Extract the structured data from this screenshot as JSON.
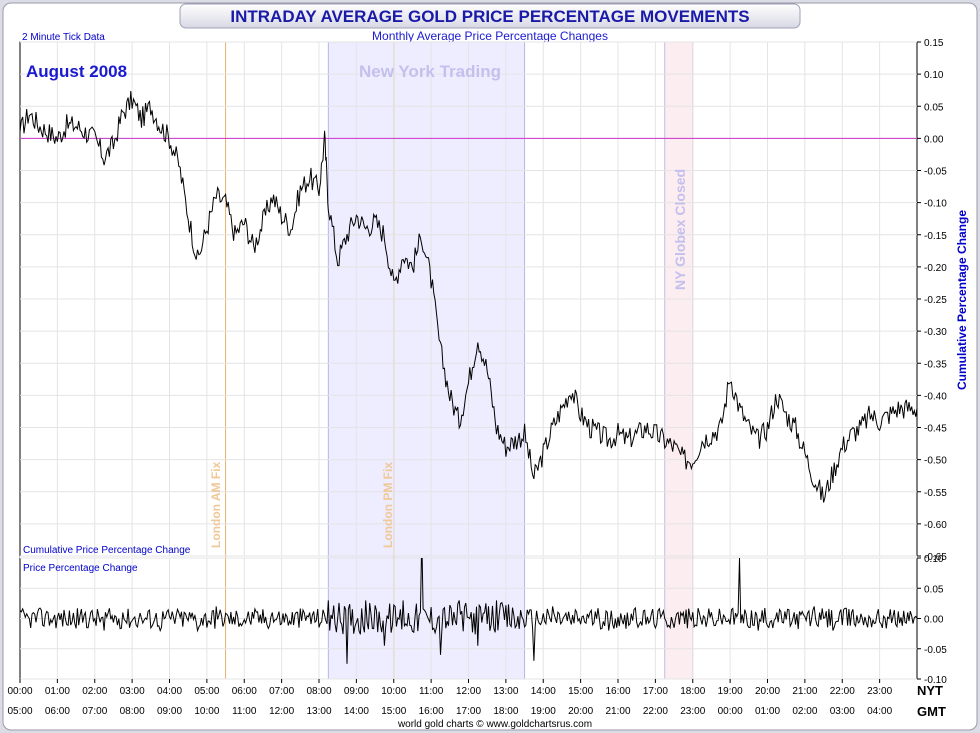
{
  "title": "INTRADAY AVERAGE GOLD PRICE PERCENTAGE MOVEMENTS",
  "subtitle": "Monthly Average Price Percentage Changes",
  "tick_note": "2 Minute Tick Data",
  "month_label": "August 2008",
  "credit": "world gold charts © www.goldchartsrus.com",
  "colors": {
    "title": "#1a1aa8",
    "line": "#000000",
    "zero_line": "#cc33cc",
    "ny_band": "#e8e6ff",
    "globex_band": "#fbe9ee",
    "fix_line": "#e8b070",
    "axis_label": "#0000cc"
  },
  "annotations": {
    "ny_trading": "New York Trading",
    "globex": "NY Globex Closed",
    "am_fix": "London AM Fix",
    "pm_fix": "London PM Fix"
  },
  "axis_labels": {
    "upper_y": "Cumulative Percentage Change",
    "upper_corner": "Cumulative Price Percentage Change",
    "lower_corner": "Price Percentage Change",
    "nyt": "NYT",
    "gmt": "GMT"
  },
  "x_ticks_nyt": [
    "00:00",
    "01:00",
    "02:00",
    "03:00",
    "04:00",
    "05:00",
    "06:00",
    "07:00",
    "08:00",
    "09:00",
    "10:00",
    "11:00",
    "12:00",
    "13:00",
    "14:00",
    "15:00",
    "16:00",
    "17:00",
    "18:00",
    "19:00",
    "20:00",
    "21:00",
    "22:00",
    "23:00"
  ],
  "x_ticks_gmt": [
    "05:00",
    "06:00",
    "07:00",
    "08:00",
    "09:00",
    "10:00",
    "11:00",
    "12:00",
    "13:00",
    "14:00",
    "15:00",
    "16:00",
    "17:00",
    "18:00",
    "19:00",
    "20:00",
    "21:00",
    "22:00",
    "23:00",
    "00:00",
    "01:00",
    "02:00",
    "03:00",
    "04:00"
  ],
  "chart_data": [
    {
      "type": "line",
      "panel": "upper",
      "name": "Cumulative Price Percentage Change",
      "ylabel": "Cumulative Percentage Change",
      "xlabel": "NYT / GMT",
      "ylim": [
        -0.65,
        0.15
      ],
      "y_ticks": [
        "0.15",
        "0.10",
        "0.05",
        "0.00",
        "-0.05",
        "-0.10",
        "-0.15",
        "-0.20",
        "-0.25",
        "-0.30",
        "-0.35",
        "-0.40",
        "-0.45",
        "-0.50",
        "-0.55",
        "-0.60",
        "-0.65"
      ],
      "x_hours_nyt": [
        0,
        0.25,
        0.5,
        0.75,
        1,
        1.25,
        1.5,
        1.75,
        2,
        2.25,
        2.5,
        2.75,
        3,
        3.25,
        3.5,
        3.75,
        4,
        4.25,
        4.5,
        4.75,
        5,
        5.25,
        5.5,
        5.75,
        6,
        6.25,
        6.5,
        6.75,
        7,
        7.25,
        7.5,
        7.75,
        8,
        8.15,
        8.25,
        8.5,
        8.75,
        9,
        9.25,
        9.5,
        9.75,
        10,
        10.25,
        10.5,
        10.75,
        11,
        11.25,
        11.5,
        11.75,
        12,
        12.25,
        12.5,
        12.75,
        13,
        13.25,
        13.5,
        13.75,
        14,
        14.25,
        14.5,
        14.75,
        15,
        15.25,
        15.5,
        15.75,
        16,
        16.25,
        16.5,
        16.75,
        17,
        17.25,
        17.5,
        17.75,
        18,
        18.25,
        18.5,
        18.75,
        19,
        19.25,
        19.5,
        19.75,
        20,
        20.25,
        20.5,
        20.75,
        21,
        21.25,
        21.5,
        21.75,
        22,
        22.25,
        22.5,
        22.75,
        23,
        23.25,
        23.5,
        23.75,
        24
      ],
      "values": [
        0.01,
        0.04,
        0.02,
        0.01,
        0.0,
        0.02,
        0.02,
        0.01,
        0.0,
        -0.03,
        -0.01,
        0.04,
        0.06,
        0.03,
        0.05,
        0.02,
        0.0,
        -0.04,
        -0.12,
        -0.19,
        -0.14,
        -0.09,
        -0.1,
        -0.15,
        -0.13,
        -0.17,
        -0.13,
        -0.09,
        -0.12,
        -0.14,
        -0.08,
        -0.06,
        -0.08,
        0.0,
        -0.1,
        -0.19,
        -0.15,
        -0.12,
        -0.14,
        -0.13,
        -0.15,
        -0.23,
        -0.18,
        -0.2,
        -0.15,
        -0.22,
        -0.33,
        -0.4,
        -0.44,
        -0.38,
        -0.31,
        -0.36,
        -0.45,
        -0.48,
        -0.47,
        -0.46,
        -0.53,
        -0.49,
        -0.45,
        -0.42,
        -0.39,
        -0.43,
        -0.45,
        -0.46,
        -0.47,
        -0.46,
        -0.47,
        -0.46,
        -0.45,
        -0.46,
        -0.47,
        -0.48,
        -0.5,
        -0.5,
        -0.47,
        -0.46,
        -0.45,
        -0.37,
        -0.42,
        -0.45,
        -0.47,
        -0.45,
        -0.4,
        -0.43,
        -0.45,
        -0.49,
        -0.53,
        -0.56,
        -0.52,
        -0.48,
        -0.46,
        -0.45,
        -0.43,
        -0.44,
        -0.43,
        -0.42,
        -0.42,
        -0.42
      ]
    },
    {
      "type": "line",
      "panel": "lower",
      "name": "Price Percentage Change",
      "xlabel": "NYT / GMT",
      "ylim": [
        -0.1,
        0.1
      ],
      "y_ticks": [
        "0.10",
        "0.05",
        "0.00",
        "-0.05",
        "-0.10"
      ],
      "x_hours_nyt": [
        0,
        0.5,
        1,
        1.5,
        2,
        2.5,
        3,
        3.5,
        4,
        4.5,
        5,
        5.5,
        6,
        6.5,
        7,
        7.5,
        8,
        8.5,
        9,
        9.5,
        10,
        10.5,
        11,
        11.5,
        12,
        12.5,
        13,
        13.5,
        14,
        14.5,
        15,
        15.5,
        16,
        16.5,
        17,
        17.5,
        18,
        18.5,
        19,
        19.5,
        20,
        20.5,
        21,
        21.5,
        22,
        22.5,
        23,
        23.5,
        24
      ],
      "values": [
        0.0,
        0.01,
        -0.01,
        0.01,
        -0.02,
        0.01,
        0.0,
        -0.02,
        0.01,
        -0.02,
        0.02,
        -0.01,
        0.0,
        0.01,
        -0.01,
        0.01,
        0.03,
        -0.05,
        0.02,
        -0.03,
        0.02,
        0.09,
        -0.04,
        0.02,
        -0.03,
        0.02,
        -0.01,
        -0.07,
        0.02,
        -0.01,
        0.01,
        -0.02,
        0.01,
        -0.01,
        0.0,
        0.01,
        -0.01,
        0.0,
        0.1,
        -0.02,
        0.01,
        -0.01,
        0.02,
        -0.02,
        0.01,
        0.0,
        0.0,
        0.01,
        0.0
      ]
    }
  ]
}
